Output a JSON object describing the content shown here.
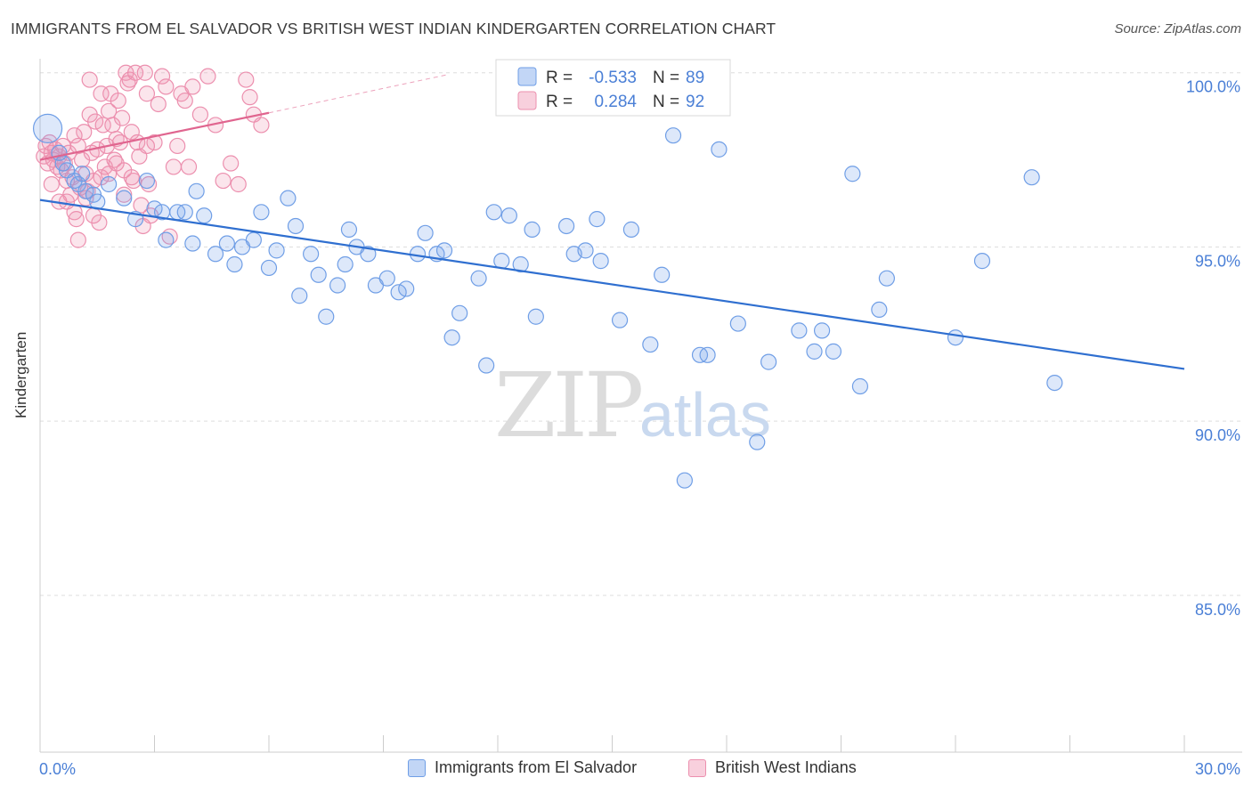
{
  "title": "IMMIGRANTS FROM EL SALVADOR VS BRITISH WEST INDIAN KINDERGARTEN CORRELATION CHART",
  "source": "Source: ZipAtlas.com",
  "watermark": {
    "zip": "ZIP",
    "atlas": "atlas"
  },
  "colors": {
    "blue": "#6f9ee6",
    "blue_fill": "rgba(120,165,235,0.25)",
    "blue_line": "#2f6fd0",
    "pink": "#ec8fae",
    "pink_fill": "rgba(240,150,180,0.25)",
    "pink_line": "#e0658f",
    "tick_text": "#4a7fd6",
    "grid": "#dddddd"
  },
  "legend_stats": {
    "r_label": "R =",
    "n_label": "N =",
    "series": [
      {
        "r": "-0.533",
        "n": "89"
      },
      {
        "r": "0.284",
        "n": "92"
      }
    ]
  },
  "chart_data": {
    "type": "scatter",
    "title": "IMMIGRANTS FROM EL SALVADOR VS BRITISH WEST INDIAN KINDERGARTEN CORRELATION CHART",
    "xlabel": "",
    "ylabel": "Kindergarten",
    "xlim": [
      0,
      30
    ],
    "ylim": [
      80.5,
      100.3
    ],
    "x_tick_labels": [
      "0.0%",
      "30.0%"
    ],
    "y_ticks": [
      85,
      90,
      95,
      100
    ],
    "y_tick_labels": [
      "85.0%",
      "90.0%",
      "95.0%",
      "100.0%"
    ],
    "grid": true,
    "legend_position": "bottom",
    "series": [
      {
        "name": "Immigrants from El Salvador",
        "r": -0.533,
        "n": 89,
        "trend": {
          "x": [
            0,
            30
          ],
          "y": [
            96.35,
            91.5
          ]
        },
        "points": [
          [
            0.2,
            98.4
          ],
          [
            0.5,
            97.7
          ],
          [
            0.7,
            97.2
          ],
          [
            0.9,
            96.9
          ],
          [
            1.0,
            96.8
          ],
          [
            1.2,
            96.6
          ],
          [
            1.4,
            96.5
          ],
          [
            1.5,
            96.3
          ],
          [
            1.8,
            96.8
          ],
          [
            2.2,
            96.4
          ],
          [
            2.5,
            95.8
          ],
          [
            2.8,
            96.9
          ],
          [
            3.0,
            96.1
          ],
          [
            3.2,
            96.0
          ],
          [
            3.3,
            95.2
          ],
          [
            3.6,
            96.0
          ],
          [
            3.8,
            96.0
          ],
          [
            4.0,
            95.1
          ],
          [
            4.1,
            96.6
          ],
          [
            4.3,
            95.9
          ],
          [
            4.6,
            94.8
          ],
          [
            4.9,
            95.1
          ],
          [
            5.1,
            94.5
          ],
          [
            5.3,
            95.0
          ],
          [
            5.6,
            95.2
          ],
          [
            5.8,
            96.0
          ],
          [
            6.0,
            94.4
          ],
          [
            6.2,
            94.9
          ],
          [
            6.5,
            96.4
          ],
          [
            6.7,
            95.6
          ],
          [
            6.8,
            93.6
          ],
          [
            7.1,
            94.8
          ],
          [
            7.3,
            94.2
          ],
          [
            7.5,
            93.0
          ],
          [
            7.8,
            93.9
          ],
          [
            8.0,
            94.5
          ],
          [
            8.1,
            95.5
          ],
          [
            8.3,
            95.0
          ],
          [
            8.6,
            94.8
          ],
          [
            8.8,
            93.9
          ],
          [
            9.1,
            94.1
          ],
          [
            9.4,
            93.7
          ],
          [
            9.6,
            93.8
          ],
          [
            9.9,
            94.8
          ],
          [
            10.1,
            95.4
          ],
          [
            10.4,
            94.8
          ],
          [
            10.6,
            94.9
          ],
          [
            10.8,
            92.4
          ],
          [
            11.0,
            93.1
          ],
          [
            11.5,
            94.1
          ],
          [
            11.7,
            91.6
          ],
          [
            11.9,
            96.0
          ],
          [
            12.1,
            94.6
          ],
          [
            12.3,
            95.9
          ],
          [
            12.6,
            94.5
          ],
          [
            12.9,
            95.5
          ],
          [
            13.0,
            93.0
          ],
          [
            13.5,
            99.7
          ],
          [
            13.8,
            95.6
          ],
          [
            14.0,
            94.8
          ],
          [
            14.3,
            94.9
          ],
          [
            14.6,
            95.8
          ],
          [
            14.7,
            94.6
          ],
          [
            15.2,
            92.9
          ],
          [
            15.5,
            95.5
          ],
          [
            16.0,
            92.2
          ],
          [
            16.3,
            94.2
          ],
          [
            16.6,
            98.2
          ],
          [
            16.9,
            88.3
          ],
          [
            17.3,
            91.9
          ],
          [
            17.5,
            91.9
          ],
          [
            17.8,
            97.8
          ],
          [
            18.3,
            92.8
          ],
          [
            18.8,
            89.4
          ],
          [
            19.1,
            91.7
          ],
          [
            19.9,
            92.6
          ],
          [
            20.3,
            92.0
          ],
          [
            20.5,
            92.6
          ],
          [
            20.8,
            92.0
          ],
          [
            21.3,
            97.1
          ],
          [
            21.5,
            91.0
          ],
          [
            22.0,
            93.2
          ],
          [
            22.2,
            94.1
          ],
          [
            24.0,
            92.4
          ],
          [
            24.7,
            94.6
          ],
          [
            26.0,
            97.0
          ],
          [
            26.6,
            91.1
          ],
          [
            0.6,
            97.4
          ],
          [
            1.1,
            97.1
          ]
        ]
      },
      {
        "name": "British West Indians",
        "r": 0.284,
        "n": 92,
        "trend": {
          "x": [
            0,
            6
          ],
          "y": [
            97.5,
            98.85
          ]
        },
        "trend_dashed": {
          "x": [
            6,
            10.7
          ],
          "y": [
            98.85,
            99.95
          ]
        },
        "points": [
          [
            0.1,
            97.6
          ],
          [
            0.15,
            97.9
          ],
          [
            0.2,
            97.4
          ],
          [
            0.25,
            98.0
          ],
          [
            0.3,
            97.7
          ],
          [
            0.35,
            97.5
          ],
          [
            0.4,
            97.8
          ],
          [
            0.45,
            97.3
          ],
          [
            0.5,
            97.6
          ],
          [
            0.55,
            97.2
          ],
          [
            0.6,
            97.9
          ],
          [
            0.65,
            97.4
          ],
          [
            0.7,
            96.9
          ],
          [
            0.75,
            97.7
          ],
          [
            0.8,
            96.5
          ],
          [
            0.85,
            97.0
          ],
          [
            0.9,
            96.0
          ],
          [
            0.95,
            95.8
          ],
          [
            1.0,
            95.2
          ],
          [
            1.05,
            96.7
          ],
          [
            1.1,
            97.5
          ],
          [
            1.15,
            98.3
          ],
          [
            1.2,
            97.1
          ],
          [
            1.25,
            96.6
          ],
          [
            1.3,
            98.8
          ],
          [
            1.35,
            97.7
          ],
          [
            1.4,
            96.9
          ],
          [
            1.45,
            98.6
          ],
          [
            1.5,
            97.8
          ],
          [
            1.55,
            95.7
          ],
          [
            1.6,
            99.4
          ],
          [
            1.65,
            98.5
          ],
          [
            1.7,
            97.3
          ],
          [
            1.75,
            97.9
          ],
          [
            1.8,
            98.9
          ],
          [
            1.85,
            99.4
          ],
          [
            1.9,
            98.5
          ],
          [
            1.95,
            97.5
          ],
          [
            2.0,
            98.1
          ],
          [
            2.05,
            99.2
          ],
          [
            2.1,
            98.0
          ],
          [
            2.15,
            98.7
          ],
          [
            2.2,
            97.2
          ],
          [
            2.25,
            100.0
          ],
          [
            2.3,
            99.7
          ],
          [
            2.35,
            99.8
          ],
          [
            2.4,
            98.3
          ],
          [
            2.45,
            96.9
          ],
          [
            2.5,
            100.0
          ],
          [
            2.55,
            98.0
          ],
          [
            2.6,
            97.6
          ],
          [
            2.65,
            96.2
          ],
          [
            2.7,
            95.6
          ],
          [
            2.75,
            100.0
          ],
          [
            2.8,
            99.4
          ],
          [
            2.85,
            96.8
          ],
          [
            2.9,
            95.9
          ],
          [
            3.0,
            98.0
          ],
          [
            3.1,
            99.1
          ],
          [
            3.2,
            99.9
          ],
          [
            3.3,
            99.6
          ],
          [
            3.4,
            95.3
          ],
          [
            3.5,
            97.3
          ],
          [
            3.6,
            97.9
          ],
          [
            3.7,
            99.4
          ],
          [
            3.8,
            99.2
          ],
          [
            4.0,
            99.6
          ],
          [
            4.2,
            98.8
          ],
          [
            4.4,
            99.9
          ],
          [
            4.6,
            98.5
          ],
          [
            4.8,
            96.9
          ],
          [
            5.0,
            97.4
          ],
          [
            5.2,
            96.8
          ],
          [
            5.4,
            99.8
          ],
          [
            5.5,
            99.3
          ],
          [
            5.6,
            98.8
          ],
          [
            5.8,
            98.5
          ],
          [
            0.3,
            96.8
          ],
          [
            0.7,
            96.3
          ],
          [
            0.9,
            98.2
          ],
          [
            1.0,
            97.9
          ],
          [
            1.2,
            96.4
          ],
          [
            1.4,
            95.9
          ],
          [
            1.6,
            97.0
          ],
          [
            1.8,
            97.1
          ],
          [
            2.0,
            97.4
          ],
          [
            2.2,
            96.5
          ],
          [
            2.4,
            97.0
          ],
          [
            2.8,
            97.9
          ],
          [
            0.5,
            96.3
          ],
          [
            1.3,
            99.8
          ],
          [
            3.9,
            97.3
          ]
        ]
      }
    ]
  }
}
